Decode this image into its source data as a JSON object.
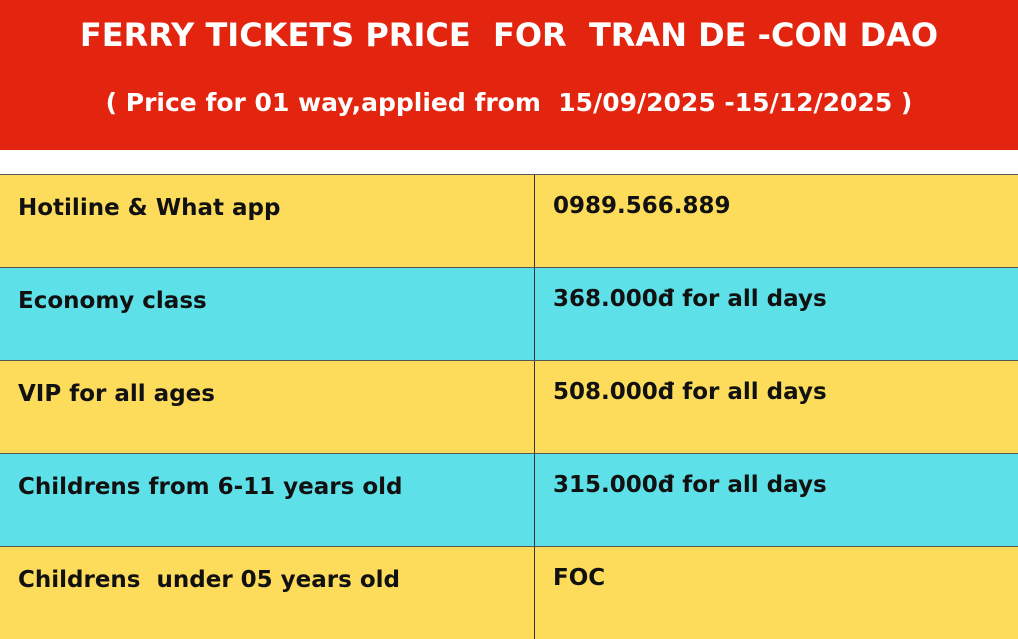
{
  "header": {
    "title": "FERRY TICKETS PRICE  FOR  TRAN DE -CON DAO",
    "subtitle": "( Price for 01 way,applied from  15/09/2025 -15/12/2025 )"
  },
  "table": {
    "rows": [
      [
        "Hotiline & What app",
        "0989.566.889"
      ],
      [
        "Economy class",
        "368.000đ for all days"
      ],
      [
        "VIP for all ages",
        "508.000đ for all days"
      ],
      [
        "Childrens from 6-11 years old",
        "315.000đ for all days"
      ],
      [
        "Childrens  under 05 years old",
        "FOC"
      ]
    ]
  }
}
